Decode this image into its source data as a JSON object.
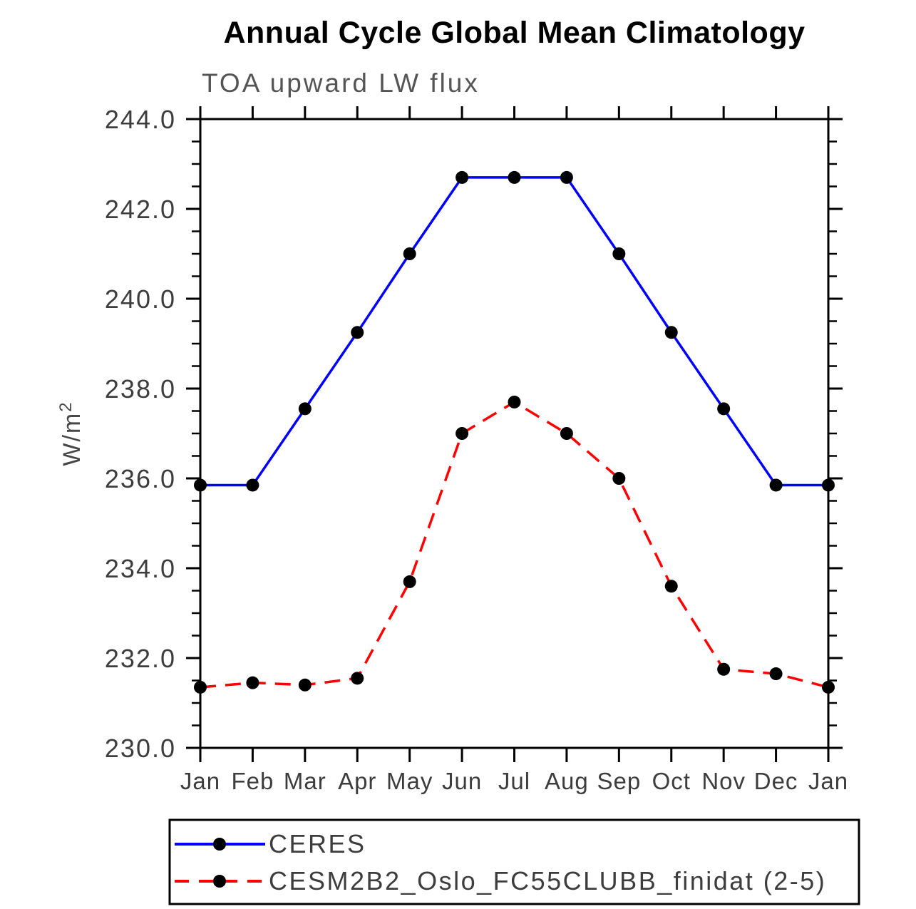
{
  "chart_data": {
    "type": "line",
    "title": "Annual Cycle Global Mean Climatology",
    "subtitle": "TOA upward LW flux",
    "ylabel": "W/m",
    "ylabel_superscript": "2",
    "xlabel": "",
    "categories": [
      "Jan",
      "Feb",
      "Mar",
      "Apr",
      "May",
      "Jun",
      "Jul",
      "Aug",
      "Sep",
      "Oct",
      "Nov",
      "Dec",
      "Jan"
    ],
    "ylim": [
      230.0,
      244.0
    ],
    "y_major_step": 2.0,
    "y_minor_step": 0.5,
    "y_tick_labels": [
      "230.0",
      "232.0",
      "234.0",
      "236.0",
      "238.0",
      "240.0",
      "242.0",
      "244.0"
    ],
    "grid": false,
    "legend_position": "bottom",
    "axis_color": "#000000",
    "tick_label_color": "#3d3d3d",
    "marker_shape": "filled-circle",
    "marker_color": "#000000",
    "series": [
      {
        "name": "CERES",
        "color": "#0000ff",
        "line_style": "solid",
        "values": [
          235.85,
          235.85,
          237.55,
          239.25,
          241.0,
          242.7,
          242.7,
          242.7,
          241.0,
          239.25,
          237.55,
          235.85,
          235.85
        ]
      },
      {
        "name": "CESM2B2_Oslo_FC55CLUBB_finidat (2-5)",
        "color": "#ff0000",
        "line_style": "dashed",
        "values": [
          231.35,
          231.45,
          231.4,
          231.55,
          233.7,
          237.0,
          237.7,
          237.0,
          236.0,
          233.6,
          231.75,
          231.65,
          231.35
        ]
      }
    ]
  }
}
